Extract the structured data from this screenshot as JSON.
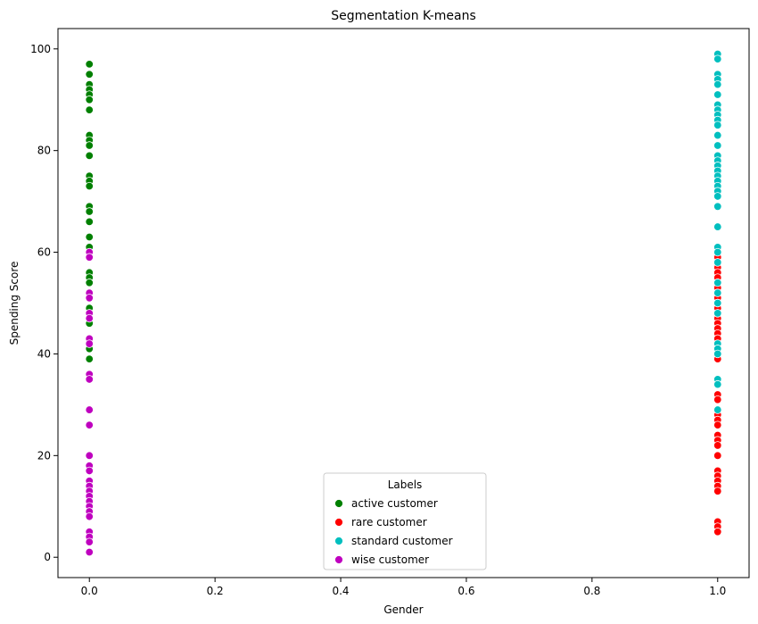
{
  "chart_data": {
    "type": "scatter",
    "title": "Segmentation K-means",
    "xlabel": "Gender",
    "ylabel": "Spending Score",
    "xlim": [
      -0.05,
      1.05
    ],
    "ylim": [
      -4,
      104
    ],
    "xticks": [
      "0.0",
      "0.2",
      "0.4",
      "0.6",
      "0.8",
      "1.0"
    ],
    "yticks": [
      "0",
      "20",
      "40",
      "60",
      "80",
      "100"
    ],
    "grid": false,
    "legend": {
      "title": "Labels",
      "placement": "bottom-center"
    },
    "series": [
      {
        "name": "active customer",
        "color": "#008000",
        "x": 0,
        "values": [
          97,
          95,
          93,
          92,
          91,
          90,
          88,
          83,
          82,
          81,
          79,
          75,
          74,
          73,
          69,
          68,
          66,
          63,
          61,
          60,
          56,
          55,
          54,
          52,
          49,
          48,
          46,
          42,
          41,
          39
        ]
      },
      {
        "name": "rare customer",
        "color": "#ff0000",
        "x": 1,
        "values": [
          59,
          58,
          57,
          56,
          55,
          54,
          53,
          52,
          51,
          50,
          49,
          48,
          47,
          46,
          45,
          44,
          43,
          42,
          39,
          35,
          32,
          31,
          29,
          28,
          27,
          26,
          24,
          23,
          22,
          20,
          17,
          16,
          15,
          14,
          13,
          7,
          6,
          5
        ]
      },
      {
        "name": "standard customer",
        "color": "#00bfbf",
        "x": 1,
        "values": [
          99,
          98,
          95,
          94,
          93,
          91,
          89,
          88,
          87,
          86,
          85,
          83,
          81,
          79,
          78,
          77,
          76,
          75,
          74,
          73,
          72,
          71,
          69,
          65,
          61,
          60,
          58,
          54,
          52,
          50,
          48,
          42,
          41,
          40,
          35,
          34,
          29
        ]
      },
      {
        "name": "wise customer",
        "color": "#bf00bf",
        "x": 0,
        "values": [
          60,
          59,
          52,
          51,
          48,
          47,
          43,
          42,
          36,
          35,
          29,
          26,
          20,
          18,
          17,
          15,
          14,
          13,
          12,
          11,
          10,
          9,
          8,
          5,
          4,
          3,
          1
        ]
      }
    ]
  }
}
